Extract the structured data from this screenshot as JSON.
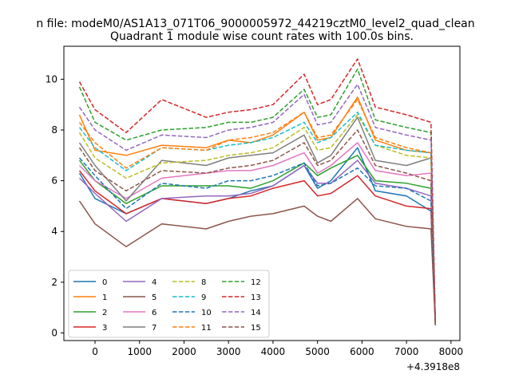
{
  "chart_data": {
    "type": "line",
    "suptitle": "n file: modeM0/AS1A13_071T06_9000005972_44219cztM0_level2_quad_clean",
    "title": "Quadrant 1 module wise count rates with 100.0s bins.",
    "xlabel": "",
    "ylabel": "",
    "x_offset_label": "+4.3918e8",
    "xlim": [
      -700,
      8200
    ],
    "ylim": [
      -0.3,
      11.3
    ],
    "x_ticks": [
      0,
      1000,
      2000,
      3000,
      4000,
      5000,
      6000,
      7000,
      8000
    ],
    "x_tick_labels": [
      "0",
      "1000",
      "2000",
      "3000",
      "4000",
      "5000",
      "6000",
      "7000",
      "8000"
    ],
    "y_ticks": [
      0,
      2,
      4,
      6,
      8,
      10
    ],
    "y_tick_labels": [
      "0",
      "2",
      "4",
      "6",
      "8",
      "10"
    ],
    "legend_placement": "lower-left",
    "grid": false,
    "x": [
      -350,
      0,
      700,
      1500,
      2500,
      3000,
      3500,
      4000,
      4700,
      5000,
      5300,
      5900,
      6300,
      7000,
      7550,
      7650
    ],
    "series": [
      {
        "name": "0",
        "color": "#1f77b4",
        "style": "solid",
        "values": [
          6.3,
          5.3,
          4.7,
          5.3,
          5.1,
          5.3,
          5.6,
          5.8,
          6.6,
          5.7,
          6.0,
          7.3,
          5.6,
          5.4,
          4.8,
          0.3
        ]
      },
      {
        "name": "1",
        "color": "#ff7f0e",
        "style": "solid",
        "values": [
          8.6,
          7.2,
          7.0,
          7.4,
          7.3,
          7.6,
          7.5,
          7.8,
          8.7,
          7.6,
          7.7,
          9.3,
          7.6,
          7.2,
          7.1,
          0.3
        ]
      },
      {
        "name": "2",
        "color": "#2ca02c",
        "style": "solid",
        "values": [
          6.8,
          6.0,
          5.1,
          5.8,
          5.8,
          5.8,
          5.7,
          6.0,
          6.7,
          6.2,
          6.5,
          7.0,
          6.0,
          5.9,
          5.7,
          0.3
        ]
      },
      {
        "name": "3",
        "color": "#d62728",
        "style": "solid",
        "values": [
          6.4,
          5.6,
          4.7,
          5.3,
          5.1,
          5.3,
          5.4,
          5.7,
          6.0,
          5.4,
          5.5,
          6.2,
          5.4,
          5.0,
          4.9,
          0.3
        ]
      },
      {
        "name": "4",
        "color": "#9467bd",
        "style": "solid",
        "values": [
          6.1,
          5.5,
          4.4,
          5.3,
          5.4,
          5.4,
          5.5,
          5.8,
          6.6,
          5.9,
          5.9,
          6.8,
          5.9,
          5.7,
          5.4,
          0.3
        ]
      },
      {
        "name": "5",
        "color": "#8c564b",
        "style": "solid",
        "values": [
          5.2,
          4.3,
          3.4,
          4.3,
          4.1,
          4.4,
          4.6,
          4.7,
          5.0,
          4.6,
          4.4,
          5.3,
          4.5,
          4.2,
          4.1,
          0.3
        ]
      },
      {
        "name": "6",
        "color": "#e377c2",
        "style": "solid",
        "values": [
          6.6,
          6.0,
          5.3,
          6.1,
          6.3,
          6.4,
          6.4,
          6.6,
          7.1,
          6.3,
          6.6,
          7.5,
          6.4,
          6.2,
          6.3,
          0.3
        ]
      },
      {
        "name": "7",
        "color": "#7f7f7f",
        "style": "solid",
        "values": [
          7.5,
          6.6,
          5.2,
          6.8,
          6.6,
          6.9,
          7.0,
          7.1,
          7.8,
          6.7,
          7.0,
          8.5,
          6.8,
          6.6,
          6.9,
          0.3
        ]
      },
      {
        "name": "8",
        "color": "#bcbd22",
        "style": "dashed",
        "values": [
          7.9,
          6.9,
          6.1,
          6.7,
          6.8,
          7.0,
          7.1,
          7.3,
          8.1,
          7.2,
          7.3,
          8.6,
          7.4,
          7.0,
          6.9,
          0.3
        ]
      },
      {
        "name": "9",
        "color": "#17becf",
        "style": "dashed",
        "values": [
          8.1,
          7.3,
          6.4,
          7.3,
          7.2,
          7.4,
          7.5,
          7.7,
          8.3,
          7.5,
          7.7,
          8.7,
          7.4,
          7.2,
          7.1,
          0.3
        ]
      },
      {
        "name": "10",
        "color": "#1f77b4",
        "style": "dashed",
        "values": [
          6.9,
          6.2,
          4.9,
          5.9,
          5.7,
          6.0,
          6.0,
          6.2,
          6.7,
          5.8,
          5.9,
          6.5,
          5.8,
          5.7,
          5.2,
          0.3
        ]
      },
      {
        "name": "11",
        "color": "#ff7f0e",
        "style": "dashed",
        "values": [
          8.3,
          7.5,
          6.5,
          7.3,
          7.2,
          7.6,
          7.7,
          7.9,
          8.7,
          7.7,
          7.8,
          9.2,
          7.7,
          7.3,
          7.1,
          0.3
        ]
      },
      {
        "name": "12",
        "color": "#2ca02c",
        "style": "dashed",
        "values": [
          9.7,
          8.3,
          7.6,
          8.0,
          8.1,
          8.3,
          8.3,
          8.5,
          9.6,
          8.5,
          8.6,
          10.4,
          8.4,
          8.1,
          7.9,
          0.3
        ]
      },
      {
        "name": "13",
        "color": "#d62728",
        "style": "dashed",
        "values": [
          9.9,
          8.8,
          7.9,
          9.2,
          8.5,
          8.7,
          8.8,
          9.0,
          10.2,
          9.0,
          9.2,
          10.8,
          8.9,
          8.6,
          8.3,
          0.3
        ]
      },
      {
        "name": "14",
        "color": "#9467bd",
        "style": "dashed",
        "values": [
          8.9,
          8.0,
          7.2,
          7.8,
          7.7,
          8.0,
          8.1,
          8.3,
          9.4,
          8.2,
          8.3,
          9.8,
          8.1,
          7.8,
          7.6,
          0.3
        ]
      },
      {
        "name": "15",
        "color": "#8c564b",
        "style": "dashed",
        "values": [
          7.3,
          6.4,
          5.6,
          6.4,
          6.3,
          6.5,
          6.6,
          6.8,
          7.5,
          6.6,
          6.8,
          8.0,
          6.6,
          6.3,
          6.0,
          0.3
        ]
      }
    ]
  }
}
